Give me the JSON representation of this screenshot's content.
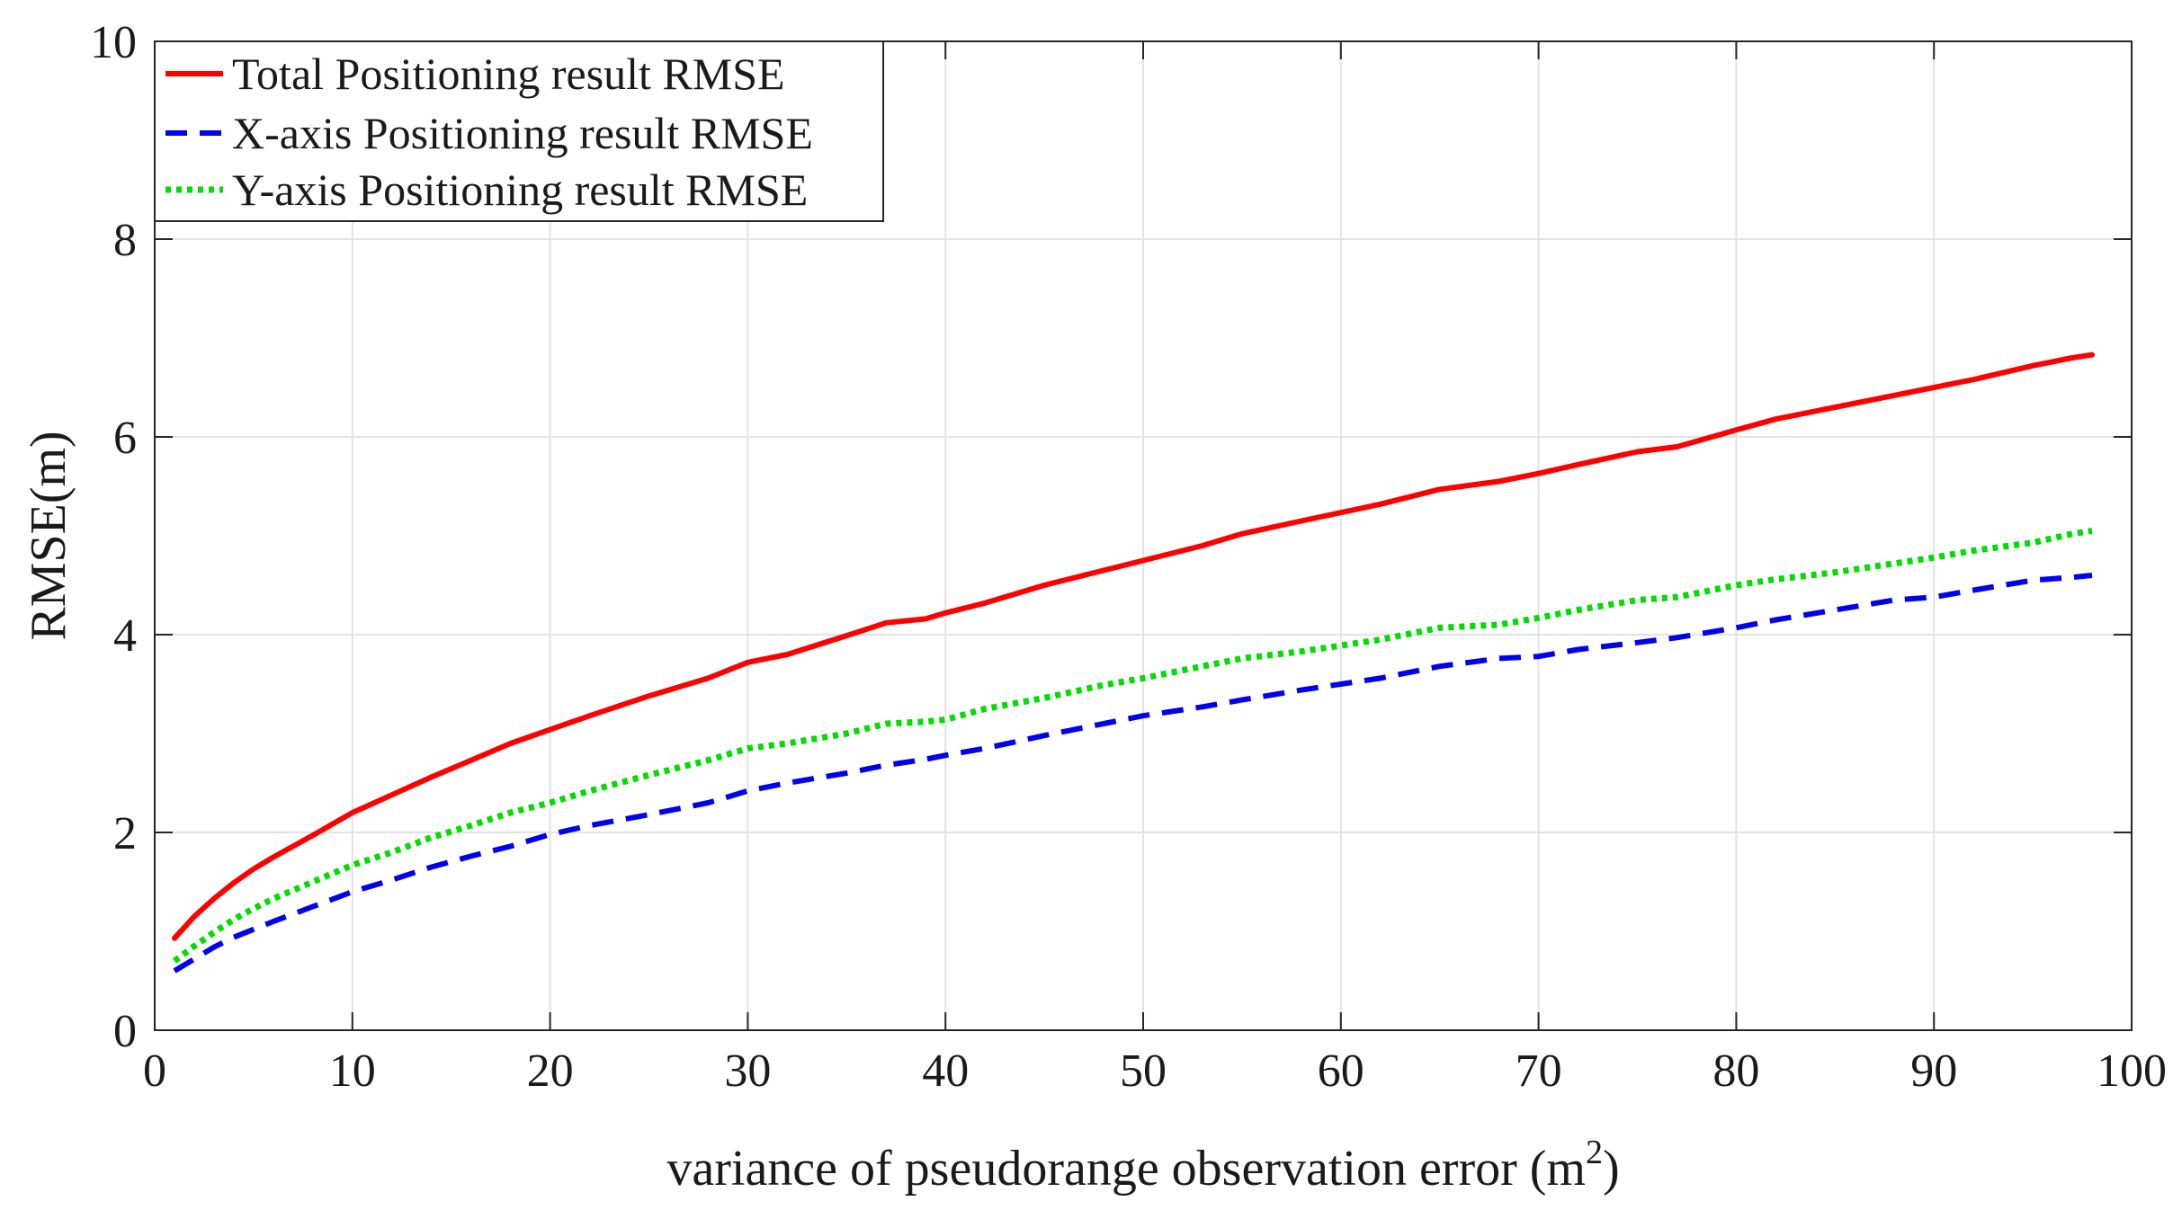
{
  "chart_data": {
    "type": "line",
    "title": "",
    "xlabel": "variance of pseudorange observation error (m",
    "xlabel_superscript": "2",
    "xlabel_suffix": ")",
    "ylabel": "RMSE(m)",
    "xlim": [
      0,
      100
    ],
    "ylim": [
      0,
      10
    ],
    "xticks": [
      0,
      10,
      20,
      30,
      40,
      50,
      60,
      70,
      80,
      90,
      100
    ],
    "yticks": [
      0,
      2,
      4,
      6,
      8,
      10
    ],
    "grid": true,
    "legend_position": "top-left",
    "x": [
      1,
      2,
      3,
      4,
      5,
      6,
      8,
      10,
      12,
      14,
      16,
      18,
      20,
      22,
      25,
      28,
      30,
      32,
      35,
      37,
      39,
      40,
      42,
      45,
      48,
      50,
      53,
      55,
      58,
      62,
      65,
      68,
      70,
      72,
      75,
      77,
      80,
      82,
      85,
      88,
      90,
      92,
      95,
      97,
      98
    ],
    "series": [
      {
        "name": "Total Positioning result RMSE",
        "color": "#ff0000",
        "style": "solid",
        "values": [
          0.93,
          1.15,
          1.33,
          1.49,
          1.63,
          1.75,
          1.97,
          2.2,
          2.38,
          2.56,
          2.73,
          2.9,
          3.04,
          3.18,
          3.38,
          3.56,
          3.72,
          3.8,
          3.99,
          4.12,
          4.16,
          4.22,
          4.32,
          4.5,
          4.65,
          4.75,
          4.9,
          5.02,
          5.15,
          5.32,
          5.47,
          5.55,
          5.63,
          5.72,
          5.85,
          5.9,
          6.07,
          6.18,
          6.3,
          6.42,
          6.5,
          6.58,
          6.72,
          6.8,
          6.83
        ]
      },
      {
        "name": "X-axis Positioning result RMSE",
        "color": "#0000ee",
        "style": "dashed",
        "values": [
          0.6,
          0.72,
          0.84,
          0.94,
          1.02,
          1.1,
          1.25,
          1.4,
          1.52,
          1.65,
          1.76,
          1.86,
          1.98,
          2.07,
          2.18,
          2.3,
          2.42,
          2.5,
          2.6,
          2.68,
          2.74,
          2.78,
          2.85,
          2.98,
          3.1,
          3.18,
          3.27,
          3.34,
          3.44,
          3.56,
          3.68,
          3.76,
          3.78,
          3.85,
          3.92,
          3.97,
          4.07,
          4.15,
          4.25,
          4.35,
          4.38,
          4.45,
          4.55,
          4.58,
          4.6
        ]
      },
      {
        "name": "Y-axis Positioning result RMSE",
        "color": "#00dd00",
        "style": "dotted",
        "values": [
          0.7,
          0.85,
          0.99,
          1.12,
          1.23,
          1.33,
          1.5,
          1.67,
          1.8,
          1.95,
          2.07,
          2.2,
          2.3,
          2.42,
          2.58,
          2.73,
          2.85,
          2.9,
          3.0,
          3.1,
          3.12,
          3.14,
          3.25,
          3.36,
          3.49,
          3.56,
          3.68,
          3.76,
          3.83,
          3.95,
          4.07,
          4.1,
          4.17,
          4.25,
          4.35,
          4.38,
          4.5,
          4.56,
          4.63,
          4.72,
          4.78,
          4.85,
          4.93,
          5.02,
          5.05
        ]
      }
    ]
  }
}
